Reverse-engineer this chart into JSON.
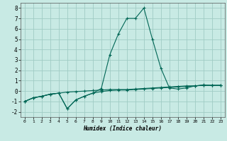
{
  "xlabel": "Humidex (Indice chaleur)",
  "background_color": "#c8eae4",
  "grid_color": "#a0ccc4",
  "line_color": "#006655",
  "xlim": [
    -0.5,
    23.5
  ],
  "ylim": [
    -2.5,
    8.5
  ],
  "xticks": [
    0,
    1,
    2,
    3,
    4,
    5,
    6,
    7,
    8,
    9,
    10,
    11,
    12,
    13,
    14,
    15,
    16,
    17,
    18,
    19,
    20,
    21,
    22,
    23
  ],
  "yticks": [
    -2,
    -1,
    0,
    1,
    2,
    3,
    4,
    5,
    6,
    7,
    8
  ],
  "line1_x": [
    0,
    1,
    2,
    3,
    4,
    5,
    6,
    7,
    8,
    9,
    10,
    11,
    12,
    13,
    14,
    15,
    16,
    17,
    18,
    19,
    20,
    21,
    22,
    23
  ],
  "line1_y": [
    -1.0,
    -0.65,
    -0.5,
    -0.3,
    -0.2,
    -0.1,
    -0.05,
    0.0,
    0.05,
    0.1,
    0.15,
    0.15,
    0.15,
    0.2,
    0.25,
    0.3,
    0.35,
    0.4,
    0.45,
    0.5,
    0.5,
    0.55,
    0.55,
    0.55
  ],
  "line2_x": [
    0,
    1,
    2,
    3,
    4,
    5,
    6,
    7,
    8,
    9,
    10,
    11,
    12,
    13,
    14,
    15,
    16,
    17,
    18,
    19,
    20,
    21,
    22,
    23
  ],
  "line2_y": [
    -1.0,
    -0.65,
    -0.5,
    -0.3,
    -0.2,
    -1.7,
    -0.85,
    -0.5,
    -0.2,
    -0.05,
    0.05,
    0.1,
    0.1,
    0.15,
    0.2,
    0.25,
    0.3,
    0.35,
    0.4,
    0.45,
    0.5,
    0.55,
    0.55,
    0.55
  ],
  "line3_x": [
    0,
    1,
    2,
    3,
    4,
    5,
    6,
    7,
    8,
    9,
    10,
    11,
    12,
    13,
    14,
    15,
    16,
    17,
    18,
    19,
    20,
    21,
    22,
    23
  ],
  "line3_y": [
    -1.0,
    -0.65,
    -0.5,
    -0.3,
    -0.2,
    -1.7,
    -0.85,
    -0.5,
    -0.2,
    0.25,
    3.5,
    5.5,
    7.0,
    7.0,
    8.0,
    5.0,
    2.2,
    0.3,
    0.2,
    0.3,
    0.5,
    0.6,
    0.55,
    0.55
  ]
}
